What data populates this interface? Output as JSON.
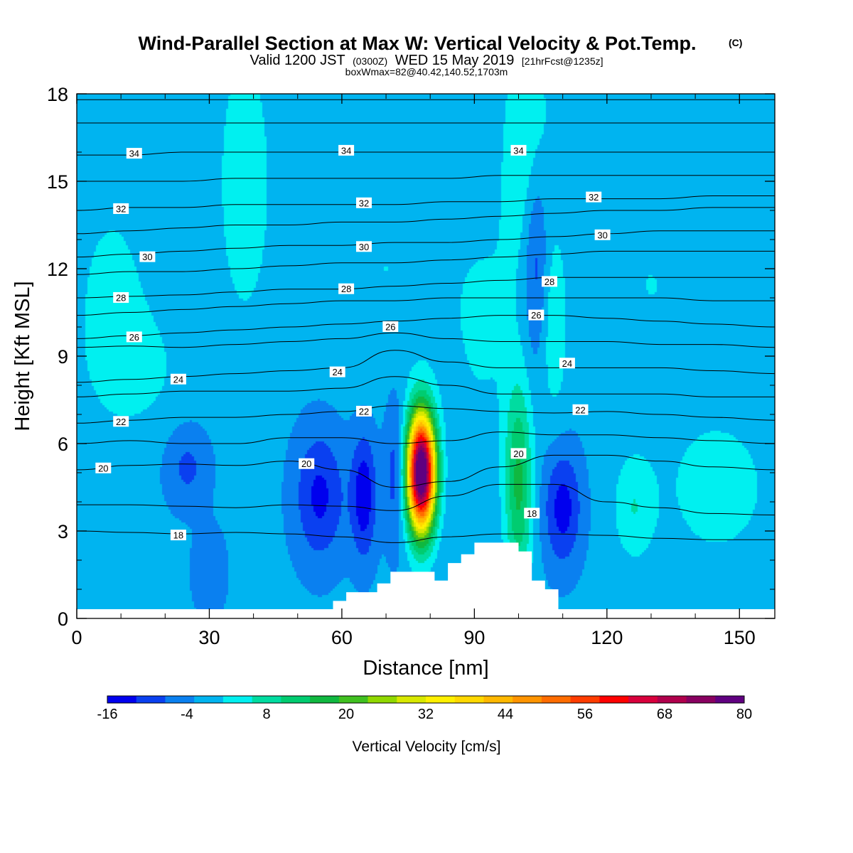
{
  "chart_data": {
    "type": "heatmap",
    "title": "Wind-Parallel Section at Max W: Vertical Velocity & Pot.Temp.",
    "title_mark": "(C)",
    "subtitle": {
      "valid": "Valid 1200 JST",
      "utc": "(0300Z)",
      "date": "WED 15 May 2019",
      "fcst": "[21hrFcst@1235z]"
    },
    "box_info": "boxWmax=82@40.42,140.52,1703m",
    "xlabel": "Distance [nm]",
    "ylabel": "Height [Kft MSL]",
    "xlim": [
      0,
      158
    ],
    "ylim": [
      0,
      18
    ],
    "x_ticks": [
      0,
      30,
      60,
      90,
      120,
      150
    ],
    "y_ticks": [
      0,
      3,
      6,
      9,
      12,
      15,
      18
    ],
    "colorbar": {
      "label": "Vertical Velocity [cm/s]",
      "tick_labels": [
        "-16",
        "-4",
        "8",
        "20",
        "32",
        "44",
        "56",
        "68",
        "80"
      ],
      "tick_values": [
        -16,
        -4,
        8,
        20,
        32,
        44,
        56,
        68,
        80
      ],
      "levels": [
        -16,
        -12,
        -8,
        -4,
        0,
        4,
        8,
        12,
        16,
        20,
        24,
        28,
        32,
        36,
        40,
        44,
        48,
        52,
        56,
        60,
        64,
        68,
        72,
        76,
        80
      ],
      "colors": [
        "#0000ee",
        "#0a40f0",
        "#0a80f0",
        "#00b4f0",
        "#00f0f0",
        "#00dca0",
        "#00cc70",
        "#10b840",
        "#40c020",
        "#90d800",
        "#d8e800",
        "#fff000",
        "#ffd800",
        "#ffb800",
        "#ff9400",
        "#ff6c00",
        "#ff3c00",
        "#ff0000",
        "#d8003c",
        "#b0004c",
        "#880060",
        "#600080"
      ]
    },
    "background_w_cm_s": -3,
    "w_features": [
      {
        "x": 78,
        "z": 5.0,
        "sx": 2.2,
        "sz": 1.4,
        "amp": 82
      },
      {
        "x": 100,
        "z": 4.6,
        "sx": 2.2,
        "sz": 2.4,
        "amp": 16
      },
      {
        "x": 108,
        "z": 10.0,
        "sx": 2.2,
        "sz": 2.2,
        "amp": 6
      },
      {
        "x": 102,
        "z": 16.0,
        "sx": 4.0,
        "sz": 3.0,
        "amp": 7
      },
      {
        "x": 126,
        "z": 3.8,
        "sx": 3.0,
        "sz": 1.2,
        "amp": 6
      },
      {
        "x": 55,
        "z": 4.2,
        "sx": 4.0,
        "sz": 1.6,
        "amp": -10
      },
      {
        "x": 65,
        "z": 4.2,
        "sx": 2.0,
        "sz": 1.5,
        "amp": -12
      },
      {
        "x": 72,
        "z": 5.0,
        "sx": 1.6,
        "sz": 1.8,
        "amp": -7
      },
      {
        "x": 110,
        "z": 3.8,
        "sx": 3.0,
        "sz": 1.4,
        "amp": -11
      },
      {
        "x": 104,
        "z": 12.5,
        "sx": 2.0,
        "sz": 2.5,
        "amp": -9
      },
      {
        "x": 25,
        "z": 5.2,
        "sx": 3.5,
        "sz": 1.0,
        "amp": -6
      },
      {
        "x": 30,
        "z": 1.6,
        "sx": 2.5,
        "sz": 1.0,
        "amp": -5
      },
      {
        "x": 38,
        "z": 15.0,
        "sx": 5.0,
        "sz": 4.0,
        "amp": 5
      },
      {
        "x": 8,
        "z": 11.0,
        "sx": 7.0,
        "sz": 3.0,
        "amp": 4
      },
      {
        "x": 15,
        "z": 8.5,
        "sx": 8.0,
        "sz": 1.5,
        "amp": 3
      },
      {
        "x": 92,
        "z": 10.0,
        "sx": 6.0,
        "sz": 3.0,
        "amp": 3.5
      },
      {
        "x": 145,
        "z": 4.5,
        "sx": 12.0,
        "sz": 2.5,
        "amp": 4
      },
      {
        "x": 130,
        "z": 11.5,
        "sx": 8.0,
        "sz": 2.0,
        "amp": 3
      },
      {
        "x": 70,
        "z": 12.0,
        "sx": 10.0,
        "sz": 2.5,
        "amp": 3
      }
    ],
    "terrain": [
      {
        "x": 58,
        "z": 0.0
      },
      {
        "x": 58,
        "z": 0.6
      },
      {
        "x": 61,
        "z": 0.6
      },
      {
        "x": 61,
        "z": 0.9
      },
      {
        "x": 68,
        "z": 0.9
      },
      {
        "x": 68,
        "z": 1.2
      },
      {
        "x": 71,
        "z": 1.2
      },
      {
        "x": 71,
        "z": 1.6
      },
      {
        "x": 81,
        "z": 1.6
      },
      {
        "x": 81,
        "z": 1.3
      },
      {
        "x": 84,
        "z": 1.3
      },
      {
        "x": 84,
        "z": 1.9
      },
      {
        "x": 87,
        "z": 1.9
      },
      {
        "x": 87,
        "z": 2.2
      },
      {
        "x": 90,
        "z": 2.2
      },
      {
        "x": 90,
        "z": 2.6
      },
      {
        "x": 100,
        "z": 2.6
      },
      {
        "x": 100,
        "z": 2.3
      },
      {
        "x": 103,
        "z": 2.3
      },
      {
        "x": 103,
        "z": 1.3
      },
      {
        "x": 106,
        "z": 1.3
      },
      {
        "x": 106,
        "z": 1.0
      },
      {
        "x": 109,
        "z": 1.0
      },
      {
        "x": 109,
        "z": 0.0
      }
    ],
    "isentropes": {
      "levels_labeled": [
        18,
        20,
        22,
        24,
        26,
        28,
        30,
        32,
        34
      ],
      "lines": [
        {
          "theta": 18,
          "z": [
            3.0,
            2.95,
            2.9,
            2.95,
            2.9,
            2.8,
            2.6,
            2.8,
            2.9,
            2.9,
            2.85,
            2.75,
            2.7,
            2.7
          ]
        },
        {
          "theta": 19,
          "z": [
            3.9,
            3.9,
            3.85,
            3.8,
            3.9,
            3.85,
            3.7,
            4.2,
            4.6,
            4.6,
            4.0,
            3.8,
            3.6,
            3.55
          ]
        },
        {
          "theta": 20,
          "z": [
            5.1,
            5.25,
            5.3,
            5.25,
            5.4,
            5.1,
            4.5,
            4.7,
            5.2,
            5.6,
            5.6,
            5.4,
            5.2,
            5.1
          ]
        },
        {
          "theta": 21,
          "z": [
            6.0,
            6.1,
            6.0,
            6.0,
            6.2,
            6.2,
            6.0,
            6.1,
            6.4,
            6.3,
            6.3,
            6.2,
            6.1,
            6.0
          ]
        },
        {
          "theta": 22,
          "z": [
            6.7,
            6.8,
            6.9,
            6.9,
            7.0,
            7.1,
            7.3,
            7.2,
            7.1,
            7.05,
            7.1,
            7.0,
            6.9,
            6.8
          ]
        },
        {
          "theta": 23,
          "z": [
            7.6,
            7.7,
            7.8,
            7.8,
            7.8,
            7.9,
            8.3,
            8.0,
            7.7,
            7.7,
            7.7,
            7.7,
            7.6,
            7.6
          ]
        },
        {
          "theta": 24,
          "z": [
            8.1,
            8.2,
            8.3,
            8.4,
            8.5,
            8.6,
            9.2,
            8.8,
            8.6,
            8.6,
            8.6,
            8.6,
            8.5,
            8.4
          ]
        },
        {
          "theta": 25,
          "z": [
            9.3,
            9.35,
            9.3,
            9.4,
            9.5,
            9.6,
            9.8,
            9.6,
            9.5,
            9.5,
            9.5,
            9.4,
            9.4,
            9.3
          ]
        },
        {
          "theta": 26,
          "z": [
            9.6,
            9.7,
            9.8,
            9.9,
            10.0,
            10.1,
            10.2,
            10.3,
            10.4,
            10.4,
            10.3,
            10.2,
            10.1,
            10.0
          ]
        },
        {
          "theta": 27,
          "z": [
            10.4,
            10.5,
            10.6,
            10.7,
            10.8,
            10.9,
            10.9,
            11.0,
            11.0,
            11.0,
            11.0,
            11.0,
            10.9,
            10.9
          ]
        },
        {
          "theta": 28,
          "z": [
            11.0,
            11.05,
            11.1,
            11.2,
            11.3,
            11.3,
            11.4,
            11.5,
            11.6,
            11.7,
            11.7,
            11.7,
            11.7,
            11.7
          ]
        },
        {
          "theta": 29,
          "z": [
            11.8,
            11.9,
            11.9,
            12.0,
            12.1,
            12.2,
            12.2,
            12.3,
            12.4,
            12.5,
            12.6,
            12.6,
            12.6,
            12.6
          ]
        },
        {
          "theta": 30,
          "z": [
            12.4,
            12.5,
            12.6,
            12.7,
            12.8,
            12.8,
            12.9,
            12.9,
            13.0,
            13.1,
            13.2,
            13.3,
            13.3,
            13.3
          ]
        },
        {
          "theta": 31,
          "z": [
            13.2,
            13.3,
            13.4,
            13.5,
            13.5,
            13.6,
            13.6,
            13.7,
            13.8,
            13.9,
            14.0,
            14.0,
            14.1,
            14.1
          ]
        },
        {
          "theta": 32,
          "z": [
            14.0,
            14.1,
            14.1,
            14.2,
            14.2,
            14.2,
            14.2,
            14.3,
            14.3,
            14.4,
            14.4,
            14.4,
            14.5,
            14.5
          ]
        },
        {
          "theta": 33,
          "z": [
            15.0,
            15.0,
            15.0,
            15.1,
            15.1,
            15.1,
            15.1,
            15.1,
            15.2,
            15.2,
            15.2,
            15.2,
            15.2,
            15.2
          ]
        },
        {
          "theta": 34,
          "z": [
            15.9,
            15.9,
            16.0,
            16.0,
            16.0,
            16.0,
            16.0,
            16.0,
            16.0,
            16.0,
            16.0,
            16.0,
            16.0,
            16.0
          ]
        },
        {
          "theta": 35,
          "z": [
            17.0,
            17.0,
            17.0,
            17.0,
            17.0,
            17.0,
            17.0,
            17.0,
            17.0,
            17.0,
            17.0,
            17.0,
            17.0,
            17.0
          ]
        },
        {
          "theta": 36,
          "z": [
            17.8,
            17.8,
            17.8,
            17.8,
            17.8,
            17.8,
            17.8,
            17.8,
            17.8,
            17.8,
            17.8,
            17.8,
            17.8,
            17.8
          ]
        }
      ],
      "x": [
        0,
        12,
        24,
        36,
        48,
        60,
        72,
        84,
        96,
        108,
        120,
        132,
        144,
        158
      ]
    },
    "contour_labels": [
      {
        "text": "34",
        "x": 13,
        "z": 15.95
      },
      {
        "text": "34",
        "x": 61,
        "z": 16.05
      },
      {
        "text": "34",
        "x": 100,
        "z": 16.05
      },
      {
        "text": "32",
        "x": 10,
        "z": 14.05
      },
      {
        "text": "32",
        "x": 65,
        "z": 14.25
      },
      {
        "text": "32",
        "x": 117,
        "z": 14.45
      },
      {
        "text": "30",
        "x": 16,
        "z": 12.4
      },
      {
        "text": "30",
        "x": 65,
        "z": 12.75
      },
      {
        "text": "30",
        "x": 119,
        "z": 13.15
      },
      {
        "text": "28",
        "x": 10,
        "z": 11.0
      },
      {
        "text": "28",
        "x": 61,
        "z": 11.3
      },
      {
        "text": "28",
        "x": 107,
        "z": 11.55
      },
      {
        "text": "26",
        "x": 13,
        "z": 9.65
      },
      {
        "text": "26",
        "x": 71,
        "z": 10.0
      },
      {
        "text": "26",
        "x": 104,
        "z": 10.4
      },
      {
        "text": "24",
        "x": 23,
        "z": 8.2
      },
      {
        "text": "24",
        "x": 59,
        "z": 8.45
      },
      {
        "text": "24",
        "x": 111,
        "z": 8.75
      },
      {
        "text": "22",
        "x": 10,
        "z": 6.75
      },
      {
        "text": "22",
        "x": 65,
        "z": 7.1
      },
      {
        "text": "22",
        "x": 114,
        "z": 7.15
      },
      {
        "text": "20",
        "x": 6,
        "z": 5.15
      },
      {
        "text": "20",
        "x": 52,
        "z": 5.3
      },
      {
        "text": "20",
        "x": 100,
        "z": 5.65
      },
      {
        "text": "18",
        "x": 23,
        "z": 2.85
      },
      {
        "text": "18",
        "x": 103,
        "z": 3.6
      }
    ]
  }
}
